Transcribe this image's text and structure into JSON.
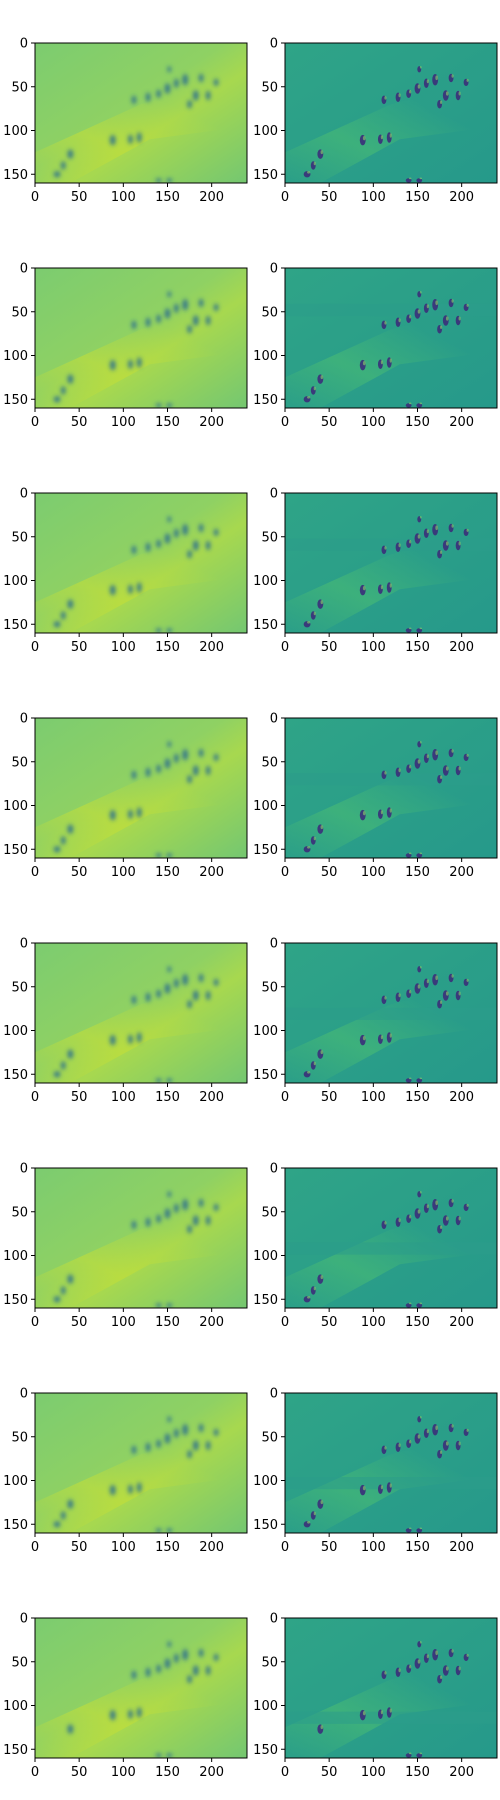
{
  "figure": {
    "layout": {
      "rows": 8,
      "cols": 2
    },
    "x_ticks": [
      "0",
      "50",
      "100",
      "150",
      "200"
    ],
    "y_ticks": [
      "0",
      "50",
      "100",
      "150"
    ],
    "x_tick_values": [
      0,
      50,
      100,
      150,
      200
    ],
    "y_tick_values": [
      0,
      50,
      100,
      150
    ],
    "x_range": [
      0,
      240
    ],
    "y_range": [
      0,
      160
    ],
    "left_panel": {
      "kind": "smooth-reconstruction",
      "colormap": "viridis",
      "background_color": "#7dc86b"
    },
    "right_panel": {
      "kind": "residual-detail",
      "colormap": "viridis",
      "background_color": "#2fa08a"
    }
  }
}
